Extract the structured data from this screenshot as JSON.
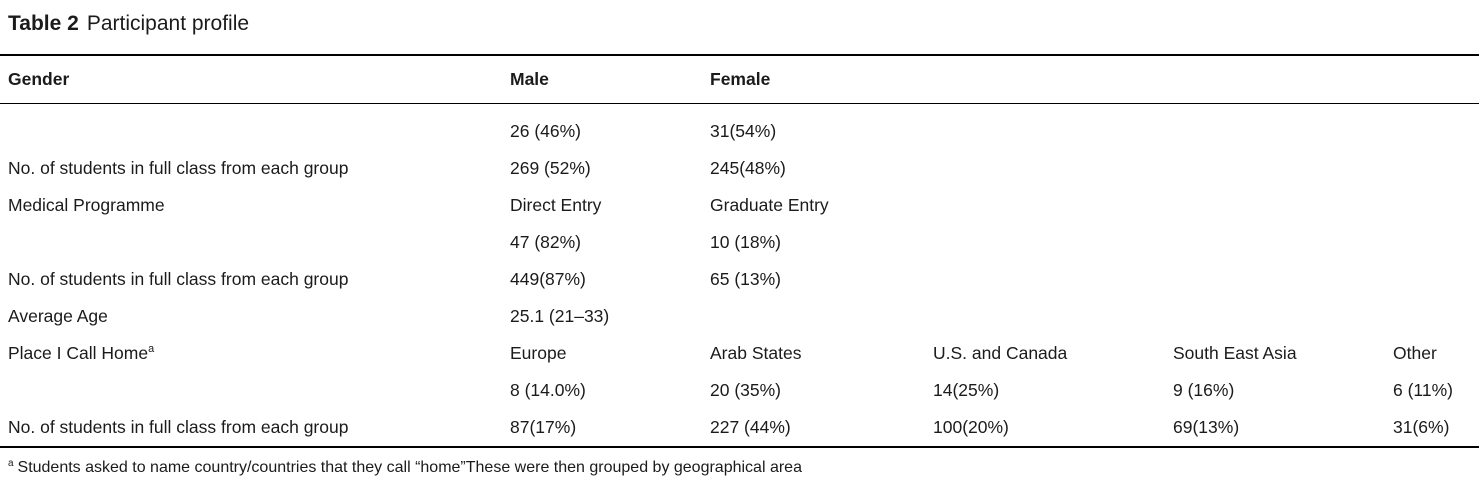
{
  "title": {
    "label": "Table 2",
    "text": "Participant profile"
  },
  "colors": {
    "text": "#1b1b1b",
    "rule": "#000000",
    "background": "#ffffff"
  },
  "table": {
    "header": [
      "Gender",
      "Male",
      "Female",
      "",
      "",
      ""
    ],
    "rows": [
      {
        "cells": [
          "",
          "26 (46%)",
          "31(54%)",
          "",
          "",
          ""
        ]
      },
      {
        "cells": [
          "No. of students in full class from each group",
          "269 (52%)",
          "245(48%)",
          "",
          "",
          ""
        ]
      },
      {
        "cells": [
          "Medical Programme",
          "Direct Entry",
          "Graduate Entry",
          "",
          "",
          ""
        ]
      },
      {
        "cells": [
          "",
          "47 (82%)",
          "10 (18%)",
          "",
          "",
          ""
        ]
      },
      {
        "cells": [
          "No. of students in full class from each group",
          "449(87%)",
          "65 (13%)",
          "",
          "",
          ""
        ]
      },
      {
        "cells": [
          "Average Age",
          "25.1 (21–33)",
          "",
          "",
          "",
          ""
        ]
      },
      {
        "cells": [
          "Place I Call Home",
          "Europe",
          "Arab States",
          "U.S. and Canada",
          "South East Asia",
          "Other"
        ],
        "sup": "a"
      },
      {
        "cells": [
          "",
          "8 (14.0%)",
          "20 (35%)",
          "14(25%)",
          "9 (16%)",
          "6 (11%)"
        ]
      },
      {
        "cells": [
          "No. of students in full class from each group",
          "87(17%)",
          "227 (44%)",
          "100(20%)",
          "69(13%)",
          "31(6%)"
        ]
      }
    ]
  },
  "footnote": {
    "marker": "a",
    "text": "Students asked to name country/countries that they call “home”These were then grouped by geographical area"
  }
}
